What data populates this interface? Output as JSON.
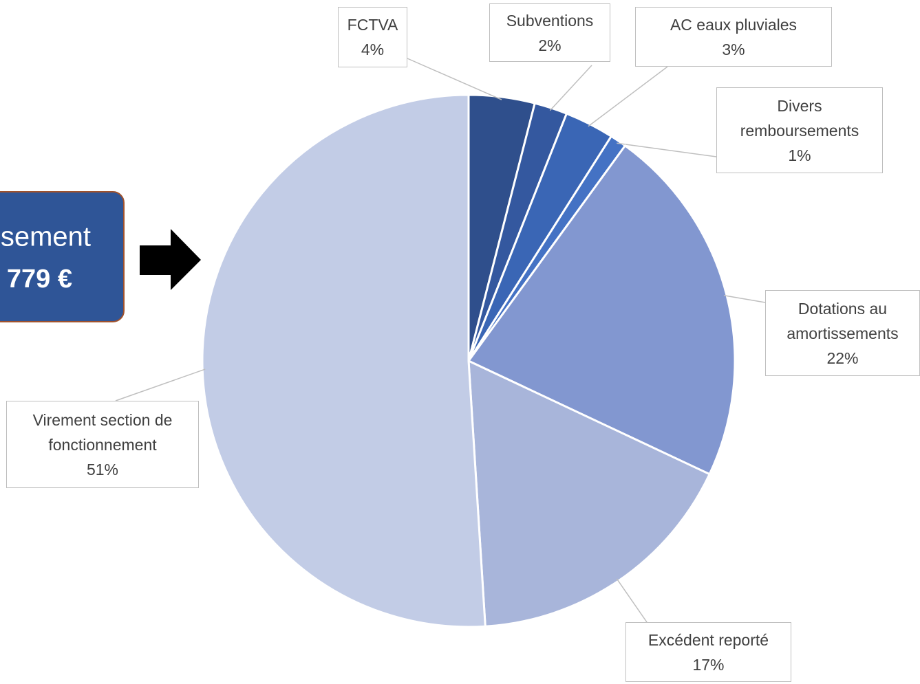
{
  "chart_data": {
    "type": "pie",
    "categories": [
      "FCTVA",
      "Subventions",
      "AC eaux pluviales",
      "Divers remboursements",
      "Dotations au amortissements",
      "Excédent reporté",
      "Virement section de fonctionnement"
    ],
    "values": [
      4,
      2,
      3,
      1,
      22,
      17,
      51
    ],
    "value_labels": [
      "4%",
      "2%",
      "3%",
      "1%",
      "22%",
      "17%",
      "51%"
    ],
    "colors": [
      "#2f4f8c",
      "#34589f",
      "#3a66b5",
      "#4472c4",
      "#8297d0",
      "#a8b5da",
      "#c2cce6"
    ]
  },
  "callout": {
    "line1": "sement",
    "line2": "779 €"
  }
}
